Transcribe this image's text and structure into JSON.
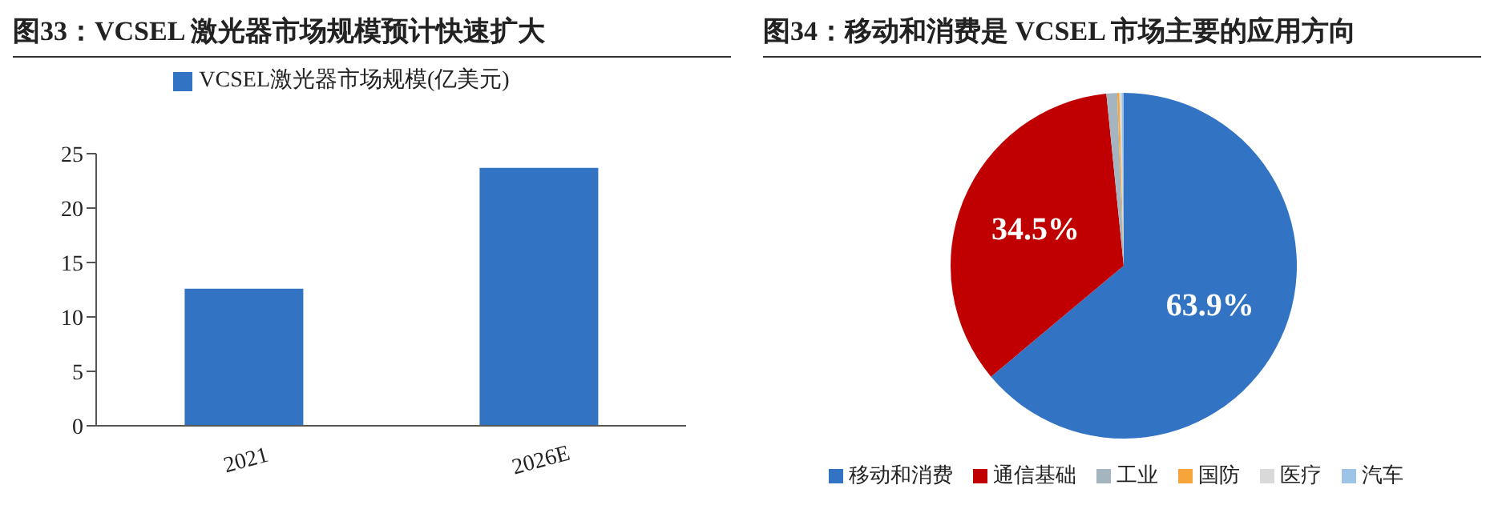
{
  "chart_data": [
    {
      "type": "bar",
      "title": "图33：VCSEL 激光器市场规模预计快速扩大",
      "categories": [
        "2021",
        "2026E"
      ],
      "series": [
        {
          "name": "VCSEL激光器市场规模(亿美元)",
          "color": "#3273c4",
          "values": [
            12.6,
            23.7
          ]
        }
      ],
      "ylim": [
        0,
        25
      ],
      "yticks": [
        0,
        5,
        10,
        15,
        20,
        25
      ],
      "grid": false,
      "legend": "top"
    },
    {
      "type": "pie",
      "title": "图34：移动和消费是 VCSEL 市场主要的应用方向",
      "categories": [
        "移动和消费",
        "通信基础",
        "工业",
        "国防",
        "医疗",
        "汽车"
      ],
      "values": [
        63.9,
        34.5,
        1.0,
        0.2,
        0.2,
        0.2
      ],
      "colors": [
        "#3273c4",
        "#c00000",
        "#a5b5c0",
        "#f5a53a",
        "#d9d9d9",
        "#9dc3e6"
      ],
      "value_labels": [
        "63.9%",
        "34.5%",
        null,
        null,
        null,
        null
      ],
      "legend": "bottom"
    }
  ]
}
